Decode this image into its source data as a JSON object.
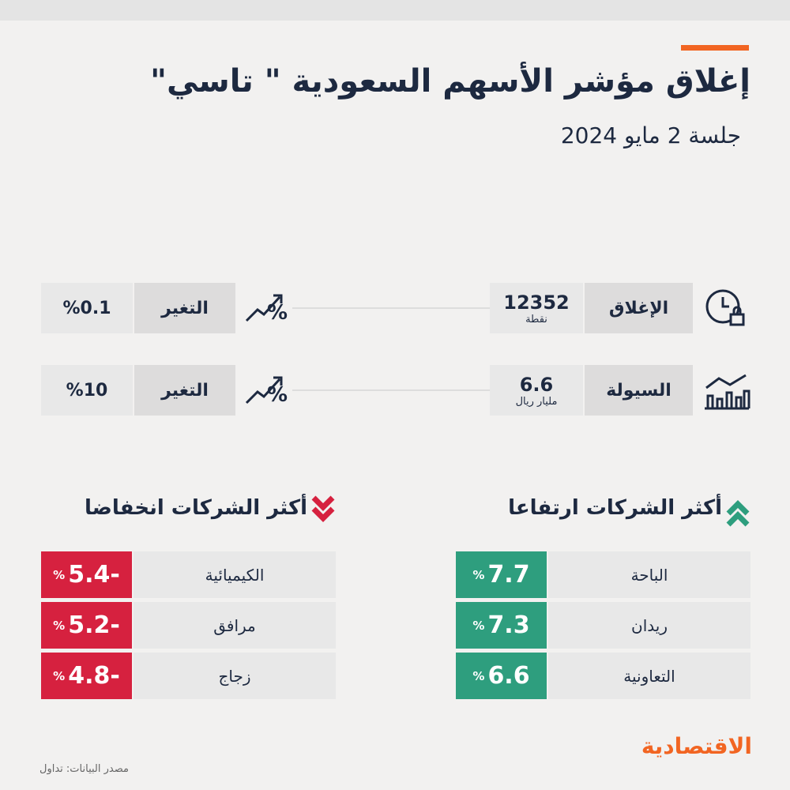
{
  "header": {
    "title": "إغلاق مؤشر الأسهم السعودية \" تاسي\"",
    "subtitle": "جلسة 2 مايو 2024"
  },
  "stats": [
    {
      "label": "الإغلاق",
      "value": "12352",
      "unit": "نقطة",
      "change_label": "التغير",
      "change": "%0.1"
    },
    {
      "label": "السيولة",
      "value": "6.6",
      "unit": "مليار ريال",
      "change_label": "التغير",
      "change": "%10"
    }
  ],
  "percent_sign": "%",
  "gainers": {
    "title": "أكثر الشركات ارتفاعا",
    "rows": [
      {
        "name": "الباحة",
        "value": "7.7"
      },
      {
        "name": "ريدان",
        "value": "7.3"
      },
      {
        "name": "التعاونية",
        "value": "6.6"
      }
    ]
  },
  "losers": {
    "title": "أكثر الشركات انخفاضا",
    "rows": [
      {
        "name": "الكيميائية",
        "value": "5.4-"
      },
      {
        "name": "مرافق",
        "value": "5.2-"
      },
      {
        "name": "زجاج",
        "value": "4.8-"
      }
    ]
  },
  "footer": {
    "logo": "الاقتصادية",
    "source": "مصدر البيانات: تداول"
  }
}
